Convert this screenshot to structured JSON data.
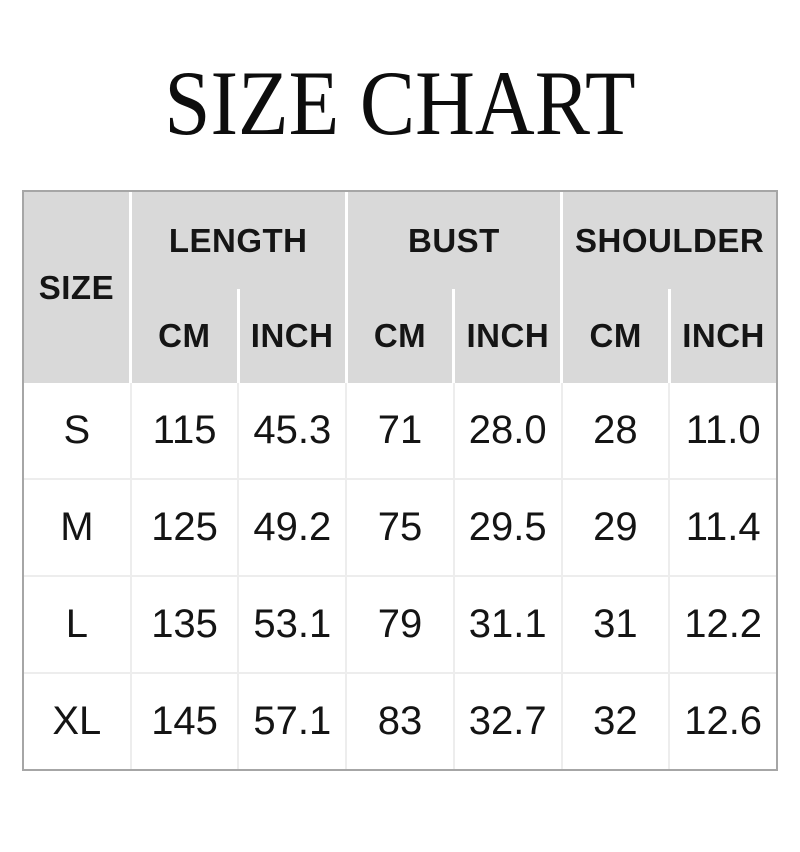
{
  "title": "SIZE CHART",
  "colors": {
    "header_bg": "#d9d9d9",
    "outer_border": "#a6a6a6",
    "body_grid_line": "#ededed",
    "text": "#141414"
  },
  "table": {
    "size_header": "SIZE",
    "groups": [
      {
        "label": "LENGTH",
        "sub": [
          "CM",
          "INCH"
        ]
      },
      {
        "label": "BUST",
        "sub": [
          "CM",
          "INCH"
        ]
      },
      {
        "label": "SHOULDER",
        "sub": [
          "CM",
          "INCH"
        ]
      }
    ],
    "rows": [
      {
        "size": "S",
        "values": [
          "115",
          "45.3",
          "71",
          "28.0",
          "28",
          "11.0"
        ]
      },
      {
        "size": "M",
        "values": [
          "125",
          "49.2",
          "75",
          "29.5",
          "29",
          "11.4"
        ]
      },
      {
        "size": "L",
        "values": [
          "135",
          "53.1",
          "79",
          "31.1",
          "31",
          "12.2"
        ]
      },
      {
        "size": "XL",
        "values": [
          "145",
          "57.1",
          "83",
          "32.7",
          "32",
          "12.6"
        ]
      }
    ]
  },
  "chart_data": {
    "type": "table",
    "title": "SIZE CHART",
    "columns": [
      "SIZE",
      "LENGTH CM",
      "LENGTH INCH",
      "BUST CM",
      "BUST INCH",
      "SHOULDER CM",
      "SHOULDER INCH"
    ],
    "rows": [
      [
        "S",
        "115",
        "45.3",
        "71",
        "28.0",
        "28",
        "11.0"
      ],
      [
        "M",
        "125",
        "49.2",
        "75",
        "29.5",
        "29",
        "11.4"
      ],
      [
        "L",
        "135",
        "53.1",
        "79",
        "31.1",
        "31",
        "12.2"
      ],
      [
        "XL",
        "145",
        "57.1",
        "83",
        "32.7",
        "32",
        "12.6"
      ]
    ]
  }
}
